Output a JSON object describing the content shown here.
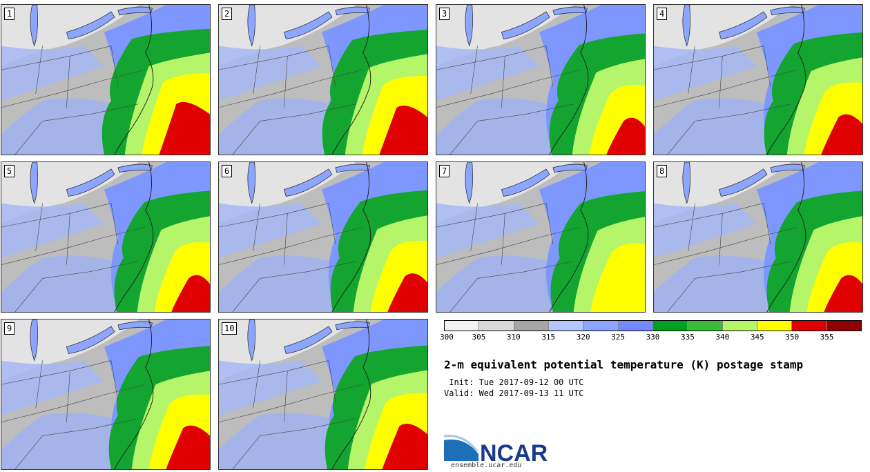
{
  "panels": [
    {
      "label": "1",
      "warm": 1.0
    },
    {
      "label": "2",
      "warm": 0.9
    },
    {
      "label": "3",
      "warm": 0.55
    },
    {
      "label": "4",
      "warm": 0.65
    },
    {
      "label": "5",
      "warm": 0.55
    },
    {
      "label": "6",
      "warm": 0.6
    },
    {
      "label": "7",
      "warm": 0.5
    },
    {
      "label": "8",
      "warm": 0.55
    },
    {
      "label": "9",
      "warm": 0.75
    },
    {
      "label": "10",
      "warm": 0.8
    }
  ],
  "colorbar": {
    "ticks": [
      "300",
      "305",
      "310",
      "315",
      "320",
      "325",
      "330",
      "335",
      "340",
      "345",
      "350",
      "355"
    ],
    "colors": [
      "#f2f2f2",
      "#d9d9d9",
      "#a6a6a6",
      "#b3c6ff",
      "#8ca6ff",
      "#7389ff",
      "#00a020",
      "#3cbb3c",
      "#b5f56a",
      "#ffff00",
      "#e00000",
      "#900000"
    ]
  },
  "title": "2-m equivalent potential temperature (K) postage stamp",
  "init": " Init: Tue 2017-09-12 00 UTC",
  "valid": "Valid: Wed 2017-09-13 11 UTC",
  "logo": {
    "text": "NCAR",
    "color": "#1a3a8a",
    "swoosh_color": "#1d6fb8"
  },
  "url": "ensemble.ucar.edu"
}
